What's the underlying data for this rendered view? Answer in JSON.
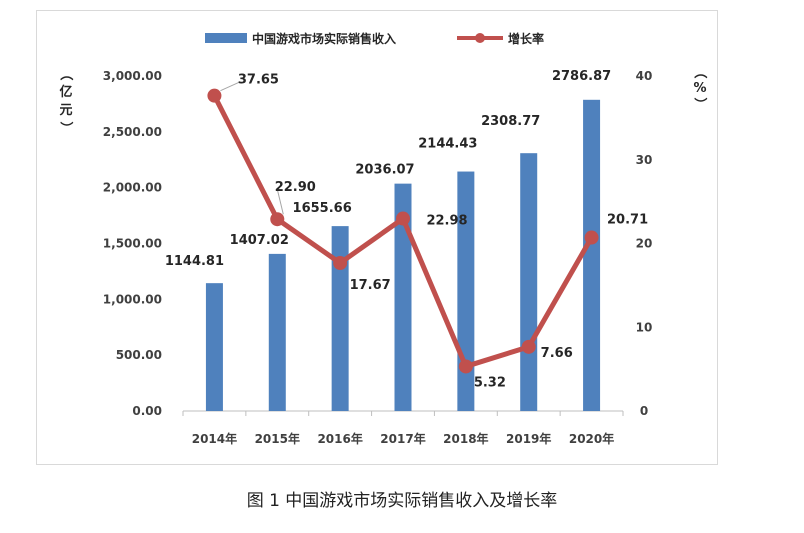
{
  "chart_data": {
    "type": "bar+line",
    "categories": [
      "2014年",
      "2015年",
      "2016年",
      "2017年",
      "2018年",
      "2019年",
      "2020年"
    ],
    "series": [
      {
        "name": "中国游戏市场实际销售收入",
        "type": "bar",
        "axis": "left",
        "values": [
          1144.81,
          1407.02,
          1655.66,
          2036.07,
          2144.43,
          2308.77,
          2786.87
        ],
        "labels": [
          "1144.81",
          "1407.02",
          "1655.66",
          "2036.07",
          "2144.43",
          "2308.77",
          "2786.87"
        ],
        "color": "#4f81bd"
      },
      {
        "name": "增长率",
        "type": "line",
        "axis": "right",
        "values": [
          37.65,
          22.9,
          17.67,
          22.98,
          5.32,
          7.66,
          20.71
        ],
        "labels": [
          "37.65",
          "22.90",
          "17.67",
          "22.98",
          "5.32",
          "7.66",
          "20.71"
        ],
        "color": "#c0504d"
      }
    ],
    "y_left": {
      "label": "（亿元）",
      "ylim": [
        0,
        3000
      ],
      "ticks": [
        "0.00",
        "500.00",
        "1,000.00",
        "1,500.00",
        "2,000.00",
        "2,500.00",
        "3,000.00"
      ]
    },
    "y_right": {
      "label": "（%）",
      "ylim": [
        0,
        40
      ],
      "ticks": [
        "0",
        "10",
        "20",
        "30",
        "40"
      ]
    },
    "legend_position": "top-center",
    "grid": false
  },
  "caption": "图 1  中国游戏市场实际销售收入及增长率"
}
